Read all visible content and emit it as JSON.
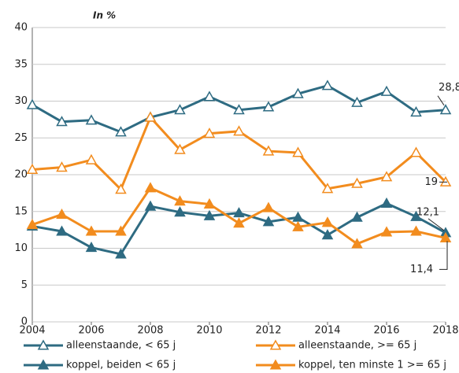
{
  "chart_data": {
    "type": "line",
    "subtitle": "In %",
    "x": [
      2004,
      2005,
      2006,
      2007,
      2008,
      2009,
      2010,
      2011,
      2012,
      2013,
      2014,
      2015,
      2016,
      2017,
      2018
    ],
    "xlim": [
      2004,
      2018
    ],
    "xticks": [
      2004,
      2006,
      2008,
      2010,
      2012,
      2014,
      2016,
      2018
    ],
    "ylim": [
      0,
      40
    ],
    "yticks": [
      0,
      5,
      10,
      15,
      20,
      25,
      30,
      35,
      40
    ],
    "grid": true,
    "series": [
      {
        "name": "alleenstaande, < 65 j",
        "color": "#2e6b82",
        "marker": "open-triangle",
        "values": [
          29.5,
          27.2,
          27.4,
          25.8,
          27.8,
          28.8,
          30.6,
          28.8,
          29.2,
          31.0,
          32.1,
          29.8,
          31.3,
          28.5,
          28.8
        ],
        "value_labels": [
          null,
          null,
          null,
          null,
          null,
          null,
          null,
          null,
          null,
          null,
          null,
          null,
          null,
          null,
          "28,8"
        ]
      },
      {
        "name": "alleenstaande, >= 65 j",
        "color": "#f28c1e",
        "marker": "open-triangle",
        "values": [
          20.7,
          21.0,
          22.0,
          18.0,
          27.8,
          23.4,
          25.6,
          25.9,
          23.2,
          23.0,
          18.1,
          18.8,
          19.7,
          23.0,
          19.0
        ],
        "value_labels": [
          null,
          null,
          null,
          null,
          null,
          null,
          null,
          null,
          null,
          null,
          null,
          null,
          null,
          null,
          "19"
        ]
      },
      {
        "name": "koppel, beiden < 65 j",
        "color": "#2e6b82",
        "marker": "filled-triangle",
        "values": [
          13.0,
          12.3,
          10.1,
          9.2,
          15.7,
          14.9,
          14.4,
          14.8,
          13.6,
          14.2,
          11.8,
          14.2,
          16.1,
          14.3,
          12.1
        ],
        "value_labels": [
          null,
          null,
          null,
          null,
          null,
          null,
          null,
          null,
          null,
          null,
          null,
          null,
          null,
          null,
          "12,1"
        ]
      },
      {
        "name": "koppel, ten minste 1 >= 65 j",
        "color": "#f28c1e",
        "marker": "filled-triangle",
        "values": [
          13.2,
          14.6,
          12.3,
          12.3,
          18.2,
          16.4,
          16.0,
          13.4,
          15.5,
          12.9,
          13.5,
          10.6,
          12.2,
          12.3,
          11.4
        ],
        "value_labels": [
          null,
          null,
          null,
          null,
          null,
          null,
          null,
          null,
          null,
          null,
          null,
          null,
          null,
          null,
          "11,4"
        ]
      }
    ]
  }
}
